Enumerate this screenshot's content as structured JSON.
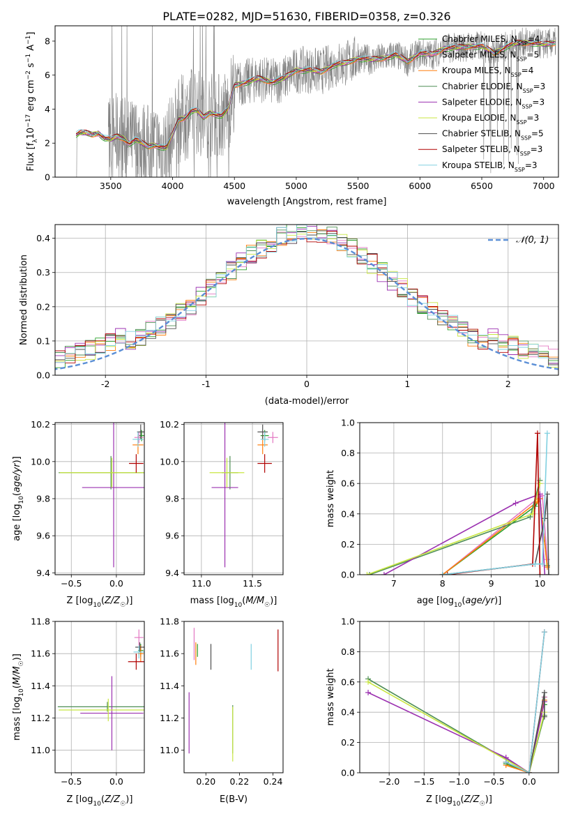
{
  "figure": {
    "title": "PLATE=0282, MJD=51630, FIBERID=0358, z=0.326"
  },
  "colors": {
    "Chabrier MILES": "#2ca02c",
    "Salpeter MILES": "#e377c2",
    "Kroupa MILES": "#ff7f0e",
    "Chabrier ELODIE": "#4e8e55",
    "Salpeter ELODIE": "#9b30b0",
    "Kroupa ELODIE": "#c8e640",
    "Chabrier STELIB": "#4d4d4d",
    "Salpeter STELIB": "#b00000",
    "Kroupa STELIB": "#80d0e0",
    "data": "#808080",
    "gaussian": "#5b8fd6"
  },
  "chart_data": [
    {
      "id": "spectrum",
      "type": "line",
      "xlabel": "wavelength [Angstrom, rest frame]",
      "ylabel": "Flux [f_λ 10^-17 erg cm^-2 s^-1 A^-1]",
      "xlim": [
        3050,
        7120
      ],
      "ylim": [
        0,
        8.9
      ],
      "xticks": [
        3500,
        4000,
        4500,
        5000,
        5500,
        6000,
        6500,
        7000
      ],
      "yticks": [
        0,
        2,
        4,
        6,
        8
      ],
      "grid": false,
      "legend": "upper right",
      "legend_entries": [
        "Chabrier MILES, N_SSP=4",
        "Salpeter MILES, N_SSP=5",
        "Kroupa MILES, N_SSP=4",
        "Chabrier ELODIE, N_SSP=3",
        "Salpeter ELODIE, N_SSP=3",
        "Kroupa ELODIE, N_SSP=3",
        "Chabrier STELIB, N_SSP=5",
        "Salpeter STELIB, N_SSP=3",
        "Kroupa STELIB, N_SSP=3"
      ],
      "model_continuum": {
        "x": [
          3220,
          3250,
          3300,
          3350,
          3400,
          3450,
          3500,
          3550,
          3600,
          3650,
          3700,
          3750,
          3800,
          3850,
          3900,
          3950,
          4000,
          4050,
          4100,
          4150,
          4200,
          4250,
          4300,
          4350,
          4400,
          4450,
          4500,
          4600,
          4700,
          4800,
          4900,
          5000,
          5100,
          5200,
          5300,
          5400,
          5500,
          5600,
          5700,
          5800,
          5900,
          6000,
          6100,
          6200,
          6300,
          6400,
          6500,
          6600,
          6700,
          6800,
          6900,
          7000,
          7100
        ],
        "y": [
          2.5,
          2.6,
          2.6,
          2.5,
          2.6,
          2.3,
          2.2,
          2.4,
          2.3,
          2.0,
          2.2,
          2.0,
          1.8,
          1.9,
          1.8,
          1.7,
          2.5,
          3.4,
          3.5,
          3.9,
          3.9,
          3.5,
          3.8,
          3.7,
          3.6,
          4.0,
          5.4,
          5.6,
          5.8,
          5.6,
          5.8,
          6.3,
          6.3,
          6.2,
          6.6,
          6.7,
          7.0,
          6.9,
          7.0,
          7.2,
          6.8,
          7.3,
          7.2,
          7.6,
          7.6,
          7.7,
          7.7,
          7.3,
          7.7,
          7.9,
          7.9,
          7.8,
          7.9
        ]
      }
    },
    {
      "id": "residuals",
      "type": "histogram",
      "xlabel": "(data-model)/error",
      "ylabel": "Normed distribution",
      "xlim": [
        -2.5,
        2.5
      ],
      "ylim": [
        0,
        0.44
      ],
      "xticks": [
        -2,
        -1,
        0,
        1,
        2
      ],
      "yticks": [
        0.0,
        0.1,
        0.2,
        0.3,
        0.4
      ],
      "grid": true,
      "legend": "upper right",
      "legend_entries": [
        "𝒩(0, 1)"
      ],
      "bin_width": 0.1,
      "bin_start": -2.5
    },
    {
      "id": "age-vs-Z",
      "type": "errorbar",
      "xlabel": "Z [log10(Z/Z☉)]",
      "ylabel": "age [log10(age/yr)]",
      "xlim": [
        -0.68,
        0.31
      ],
      "ylim": [
        9.39,
        10.21
      ],
      "xticks": [
        -0.5,
        0.0
      ],
      "xtick_labels": [
        "−0.5",
        "0.0"
      ],
      "yticks": [
        9.4,
        9.6,
        9.8,
        10.0,
        10.2
      ],
      "grid": true,
      "points": [
        {
          "model": "Chabrier MILES",
          "x": 0.28,
          "y": 10.14,
          "xerr": 0.03,
          "yerr": 0.03
        },
        {
          "model": "Salpeter MILES",
          "x": 0.25,
          "y": 10.13,
          "xerr": 0.05,
          "yerr": 0.03
        },
        {
          "model": "Kroupa MILES",
          "x": 0.24,
          "y": 10.09,
          "xerr": 0.06,
          "yerr": 0.05
        },
        {
          "model": "Chabrier ELODIE",
          "x": -0.06,
          "y": 9.94,
          "xerr": 0.58,
          "yerr": 0.09
        },
        {
          "model": "Salpeter ELODIE",
          "x": -0.03,
          "y": 9.86,
          "xerr": 0.35,
          "yerr": 0.43
        },
        {
          "model": "Kroupa ELODIE",
          "x": -0.05,
          "y": 9.94,
          "xerr": 0.58,
          "yerr": 0.08
        },
        {
          "model": "Chabrier STELIB",
          "x": 0.27,
          "y": 10.16,
          "xerr": 0.04,
          "yerr": 0.04
        },
        {
          "model": "Salpeter STELIB",
          "x": 0.22,
          "y": 9.99,
          "xerr": 0.08,
          "yerr": 0.05
        },
        {
          "model": "Kroupa STELIB",
          "x": 0.24,
          "y": 10.12,
          "xerr": 0.06,
          "yerr": 0.04
        }
      ]
    },
    {
      "id": "age-vs-mass",
      "type": "errorbar",
      "xlabel": "mass [log10(M/M☉)]",
      "ylabel": "",
      "xlim": [
        10.83,
        11.8
      ],
      "ylim": [
        9.39,
        10.21
      ],
      "xticks": [
        11.0,
        11.5
      ],
      "yticks": [
        9.4,
        9.6,
        9.8,
        10.0,
        10.2
      ],
      "grid": true,
      "points": [
        {
          "model": "Chabrier MILES",
          "x": 11.62,
          "y": 10.14,
          "xerr": 0.04,
          "yerr": 0.03
        },
        {
          "model": "Salpeter MILES",
          "x": 11.7,
          "y": 10.13,
          "xerr": 0.05,
          "yerr": 0.03
        },
        {
          "model": "Kroupa MILES",
          "x": 11.6,
          "y": 10.09,
          "xerr": 0.05,
          "yerr": 0.05
        },
        {
          "model": "Chabrier ELODIE",
          "x": 11.28,
          "y": 9.94,
          "xerr": 0.08,
          "yerr": 0.09
        },
        {
          "model": "Salpeter ELODIE",
          "x": 11.23,
          "y": 9.86,
          "xerr": 0.13,
          "yerr": 0.43
        },
        {
          "model": "Kroupa ELODIE",
          "x": 11.25,
          "y": 9.94,
          "xerr": 0.17,
          "yerr": 0.08
        },
        {
          "model": "Chabrier STELIB",
          "x": 11.6,
          "y": 10.16,
          "xerr": 0.05,
          "yerr": 0.04
        },
        {
          "model": "Salpeter STELIB",
          "x": 11.62,
          "y": 9.99,
          "xerr": 0.07,
          "yerr": 0.05
        },
        {
          "model": "Kroupa STELIB",
          "x": 11.62,
          "y": 10.12,
          "xerr": 0.04,
          "yerr": 0.04
        }
      ]
    },
    {
      "id": "weight-vs-age",
      "type": "line",
      "xlabel": "age [log10(age/yr)]",
      "ylabel": "mass weight",
      "xlim": [
        6.3,
        10.38
      ],
      "ylim": [
        0,
        1
      ],
      "xticks": [
        7,
        8,
        9,
        10
      ],
      "yticks": [
        0.0,
        0.2,
        0.4,
        0.6,
        0.8,
        1.0
      ],
      "grid": true,
      "series": [
        {
          "model": "Chabrier MILES",
          "x": [
            8.0,
            9.9,
            10.0,
            10.15
          ],
          "y": [
            0.0,
            0.45,
            0.5,
            0.06
          ]
        },
        {
          "model": "Salpeter MILES",
          "x": [
            8.0,
            9.95,
            10.05,
            10.15
          ],
          "y": [
            0.0,
            0.5,
            0.52,
            0.1
          ]
        },
        {
          "model": "Kroupa MILES",
          "x": [
            8.0,
            9.95,
            10.0,
            10.15
          ],
          "y": [
            0.0,
            0.48,
            0.5,
            0.05
          ]
        },
        {
          "model": "Chabrier ELODIE",
          "x": [
            6.5,
            9.8,
            10.0
          ],
          "y": [
            0.0,
            0.38,
            0.62
          ]
        },
        {
          "model": "Salpeter ELODIE",
          "x": [
            6.8,
            9.5,
            10.0,
            10.1
          ],
          "y": [
            0.0,
            0.47,
            0.53,
            0.0
          ]
        },
        {
          "model": "Kroupa ELODIE",
          "x": [
            6.45,
            9.85,
            10.0
          ],
          "y": [
            0.0,
            0.4,
            0.6
          ]
        },
        {
          "model": "Chabrier STELIB",
          "x": [
            8.0,
            9.9,
            10.1,
            10.15,
            10.18
          ],
          "y": [
            0.0,
            0.07,
            0.37,
            0.53,
            0.0
          ]
        },
        {
          "model": "Salpeter STELIB",
          "x": [
            8.1,
            9.85,
            9.95,
            10.0
          ],
          "y": [
            0.0,
            0.07,
            0.93,
            0.0
          ]
        },
        {
          "model": "Kroupa STELIB",
          "x": [
            8.0,
            9.9,
            10.05,
            10.15
          ],
          "y": [
            0.0,
            0.07,
            0.07,
            0.93
          ]
        }
      ]
    },
    {
      "id": "mass-vs-Z",
      "type": "errorbar",
      "xlabel": "Z [log10(Z/Z☉)]",
      "ylabel": "mass [log10(M/M☉)]",
      "xlim": [
        -0.68,
        0.31
      ],
      "ylim": [
        10.86,
        11.8
      ],
      "xticks": [
        -0.5,
        0.0
      ],
      "xtick_labels": [
        "−0.5",
        "0.0"
      ],
      "yticks": [
        11.0,
        11.2,
        11.4,
        11.6,
        11.8
      ],
      "grid": true,
      "points": [
        {
          "model": "Chabrier MILES",
          "x": 0.27,
          "y": 11.62,
          "xerr": 0.03,
          "yerr": 0.04
        },
        {
          "model": "Salpeter MILES",
          "x": 0.25,
          "y": 11.7,
          "xerr": 0.05,
          "yerr": 0.05
        },
        {
          "model": "Kroupa MILES",
          "x": 0.27,
          "y": 11.6,
          "xerr": 0.03,
          "yerr": 0.05
        },
        {
          "model": "Chabrier ELODIE",
          "x": -0.1,
          "y": 11.27,
          "xerr": 0.55,
          "yerr": 0.03
        },
        {
          "model": "Salpeter ELODIE",
          "x": -0.05,
          "y": 11.23,
          "xerr": 0.35,
          "yerr": 0.23
        },
        {
          "model": "Kroupa ELODIE",
          "x": -0.09,
          "y": 11.25,
          "xerr": 0.55,
          "yerr": 0.07
        },
        {
          "model": "Chabrier STELIB",
          "x": 0.26,
          "y": 11.64,
          "xerr": 0.05,
          "yerr": 0.03
        },
        {
          "model": "Salpeter STELIB",
          "x": 0.22,
          "y": 11.55,
          "xerr": 0.09,
          "yerr": 0.05
        },
        {
          "model": "Kroupa STELIB",
          "x": 0.25,
          "y": 11.61,
          "xerr": 0.06,
          "yerr": 0.04
        }
      ]
    },
    {
      "id": "mass-vs-EBV",
      "type": "errorbar",
      "xlabel": "E(B-V)",
      "ylabel": "",
      "xlim": [
        0.187,
        0.246
      ],
      "ylim": [
        10.86,
        11.8
      ],
      "xticks": [
        0.2,
        0.22,
        0.24
      ],
      "xtick_labels": [
        "0.20",
        "0.22",
        "0.24"
      ],
      "yticks": [
        11.0,
        11.2,
        11.4,
        11.6,
        11.8
      ],
      "grid": false,
      "points": [
        {
          "model": "Chabrier MILES",
          "x": 0.195,
          "y": 11.62,
          "yerr": 0.04
        },
        {
          "model": "Salpeter MILES",
          "x": 0.193,
          "y": 11.66,
          "yerr": 0.1
        },
        {
          "model": "Kroupa MILES",
          "x": 0.194,
          "y": 11.6,
          "yerr": 0.07
        },
        {
          "model": "Chabrier ELODIE",
          "x": 0.216,
          "y": 11.13,
          "yerr": 0.15
        },
        {
          "model": "Salpeter ELODIE",
          "x": 0.19,
          "y": 11.17,
          "yerr": 0.19
        },
        {
          "model": "Kroupa ELODIE",
          "x": 0.216,
          "y": 11.1,
          "yerr": 0.17
        },
        {
          "model": "Chabrier STELIB",
          "x": 0.203,
          "y": 11.58,
          "yerr": 0.08
        },
        {
          "model": "Salpeter STELIB",
          "x": 0.243,
          "y": 11.62,
          "yerr": 0.13
        },
        {
          "model": "Kroupa STELIB",
          "x": 0.227,
          "y": 11.58,
          "yerr": 0.08
        }
      ]
    },
    {
      "id": "weight-vs-Z",
      "type": "line",
      "xlabel": "Z [log10(Z/Z☉)]",
      "ylabel": "mass weight",
      "xlim": [
        -2.42,
        0.42
      ],
      "ylim": [
        0,
        1
      ],
      "xticks": [
        -2.0,
        -1.5,
        -1.0,
        -0.5,
        0.0
      ],
      "xtick_labels": [
        "−2.0",
        "−1.5",
        "−1.0",
        "−0.5",
        "0.0"
      ],
      "yticks": [
        0.0,
        0.2,
        0.4,
        0.6,
        0.8,
        1.0
      ],
      "grid": true,
      "series": [
        {
          "model": "Chabrier MILES",
          "x": [
            -0.33,
            0.0,
            0.22,
            0.22
          ],
          "y": [
            0.06,
            0.0,
            0.5,
            0.45
          ]
        },
        {
          "model": "Salpeter MILES",
          "x": [
            -0.33,
            0.0,
            0.22
          ],
          "y": [
            0.1,
            0.0,
            0.5
          ]
        },
        {
          "model": "Kroupa MILES",
          "x": [
            -0.33,
            0.0,
            0.22
          ],
          "y": [
            0.05,
            0.0,
            0.48
          ]
        },
        {
          "model": "Chabrier ELODIE",
          "x": [
            -2.3,
            0.0,
            0.22
          ],
          "y": [
            0.62,
            0.0,
            0.38
          ]
        },
        {
          "model": "Salpeter ELODIE",
          "x": [
            -2.3,
            -0.33,
            0.0,
            0.22
          ],
          "y": [
            0.53,
            0.1,
            0.0,
            0.47
          ]
        },
        {
          "model": "Kroupa ELODIE",
          "x": [
            -2.3,
            0.0,
            0.22
          ],
          "y": [
            0.6,
            0.0,
            0.4
          ]
        },
        {
          "model": "Chabrier STELIB",
          "x": [
            -0.33,
            0.0,
            0.22,
            0.22
          ],
          "y": [
            0.07,
            0.0,
            0.53,
            0.37
          ]
        },
        {
          "model": "Salpeter STELIB",
          "x": [
            -0.33,
            0.0,
            0.22
          ],
          "y": [
            0.07,
            0.0,
            0.93
          ]
        },
        {
          "model": "Kroupa STELIB",
          "x": [
            -0.33,
            0.0,
            0.22
          ],
          "y": [
            0.07,
            0.0,
            0.93
          ]
        }
      ]
    }
  ]
}
